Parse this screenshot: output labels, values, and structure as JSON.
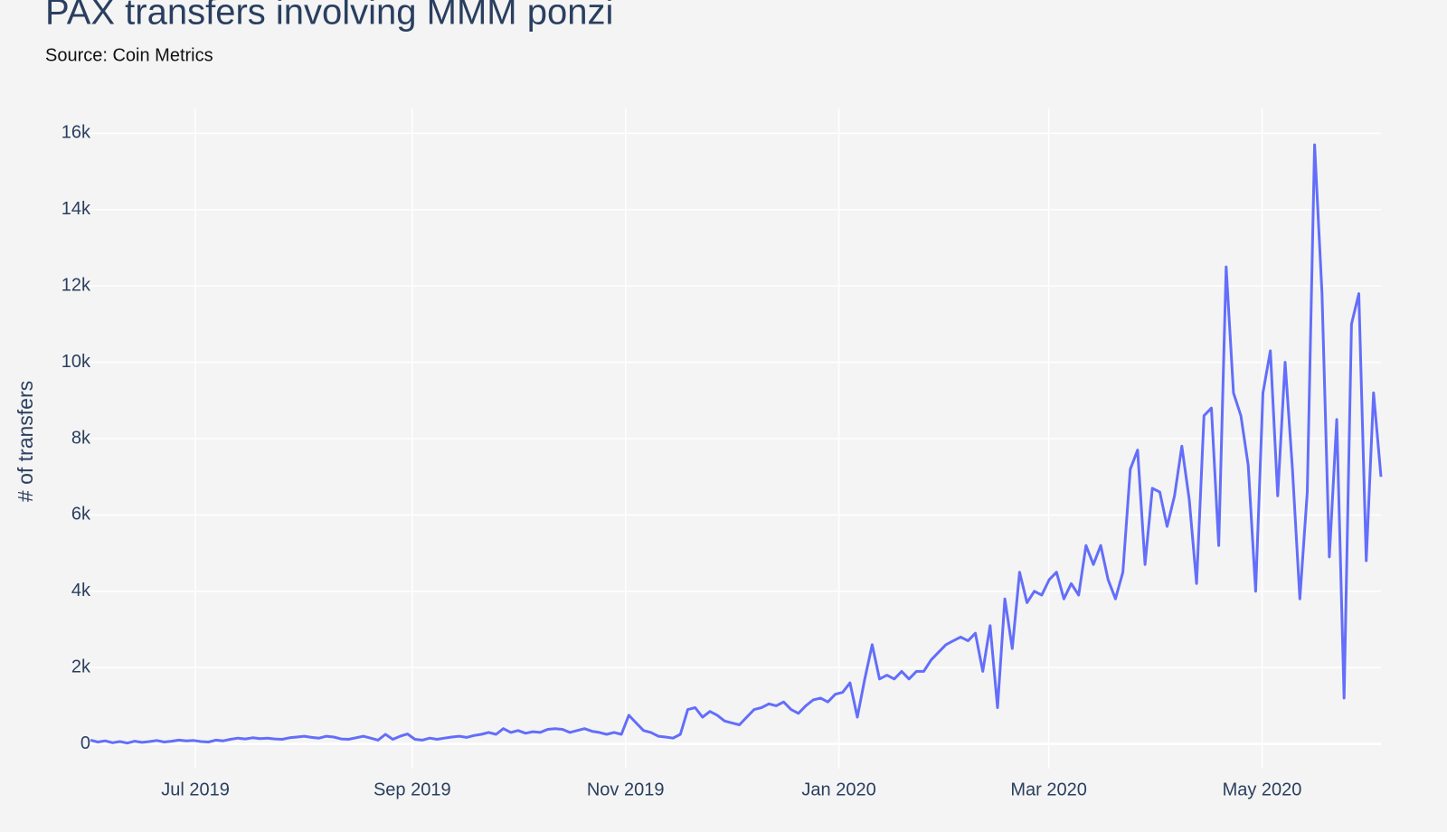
{
  "chart_data": {
    "type": "line",
    "title": "PAX transfers involving MMM ponzi",
    "subtitle": "Source: Coin Metrics",
    "y_label": "# of transfers",
    "color": "#636efa",
    "grid": true,
    "xlim": [
      "2019-06-01",
      "2020-06-04"
    ],
    "xticks": [
      {
        "value": "2019-07-01",
        "label": "Jul 2019"
      },
      {
        "value": "2019-09-01",
        "label": "Sep 2019"
      },
      {
        "value": "2019-11-01",
        "label": "Nov 2019"
      },
      {
        "value": "2020-01-01",
        "label": "Jan 2020"
      },
      {
        "value": "2020-03-01",
        "label": "Mar 2020"
      },
      {
        "value": "2020-05-01",
        "label": "May 2020"
      }
    ],
    "ylim": [
      -650,
      16650
    ],
    "yticks": [
      0,
      {
        "value": 2000,
        "label": "2k"
      },
      {
        "value": 4000,
        "label": "4k"
      },
      {
        "value": 6000,
        "label": "6k"
      },
      {
        "value": 8000,
        "label": "8k"
      },
      {
        "value": 10000,
        "label": "10k"
      },
      {
        "value": 12000,
        "label": "12k"
      },
      {
        "value": 14000,
        "label": "14k"
      },
      {
        "value": 16000,
        "label": "16k"
      }
    ],
    "values": [
      100,
      50,
      80,
      30,
      60,
      20,
      70,
      40,
      60,
      90,
      50,
      70,
      100,
      80,
      90,
      60,
      50,
      100,
      80,
      120,
      150,
      130,
      160,
      140,
      150,
      130,
      120,
      160,
      180,
      200,
      170,
      150,
      200,
      180,
      130,
      120,
      160,
      200,
      150,
      100,
      250,
      120,
      200,
      260,
      120,
      100,
      150,
      120,
      150,
      180,
      200,
      170,
      220,
      250,
      300,
      250,
      400,
      300,
      350,
      280,
      320,
      300,
      380,
      400,
      380,
      300,
      350,
      400,
      330,
      300,
      250,
      300,
      250,
      750,
      550,
      350,
      300,
      200,
      180,
      150,
      250,
      900,
      950,
      700,
      850,
      750,
      600,
      550,
      500,
      700,
      900,
      950,
      1050,
      1000,
      1100,
      900,
      800,
      1000,
      1150,
      1200,
      1100,
      1300,
      1350,
      1600,
      700,
      1700,
      2600,
      1700,
      1800,
      1700,
      1900,
      1700,
      1900,
      1900,
      2200,
      2400,
      2600,
      2700,
      2800,
      2700,
      2900,
      1900,
      3100,
      950,
      3800,
      2500,
      4500,
      3700,
      4000,
      3900,
      4300,
      4500,
      3800,
      4200,
      3900,
      5200,
      4700,
      5200,
      4300,
      3800,
      4500,
      7200,
      7700,
      4700,
      6700,
      6600,
      5700,
      6500,
      7800,
      6400,
      4200,
      8600,
      8800,
      5200,
      12500,
      9200,
      8600,
      7300,
      4000,
      9200,
      10300,
      6500,
      10000,
      7200,
      3800,
      6600,
      15700,
      11800,
      4900,
      8500,
      1200,
      11000,
      11800,
      4800,
      9200,
      7000
    ]
  }
}
